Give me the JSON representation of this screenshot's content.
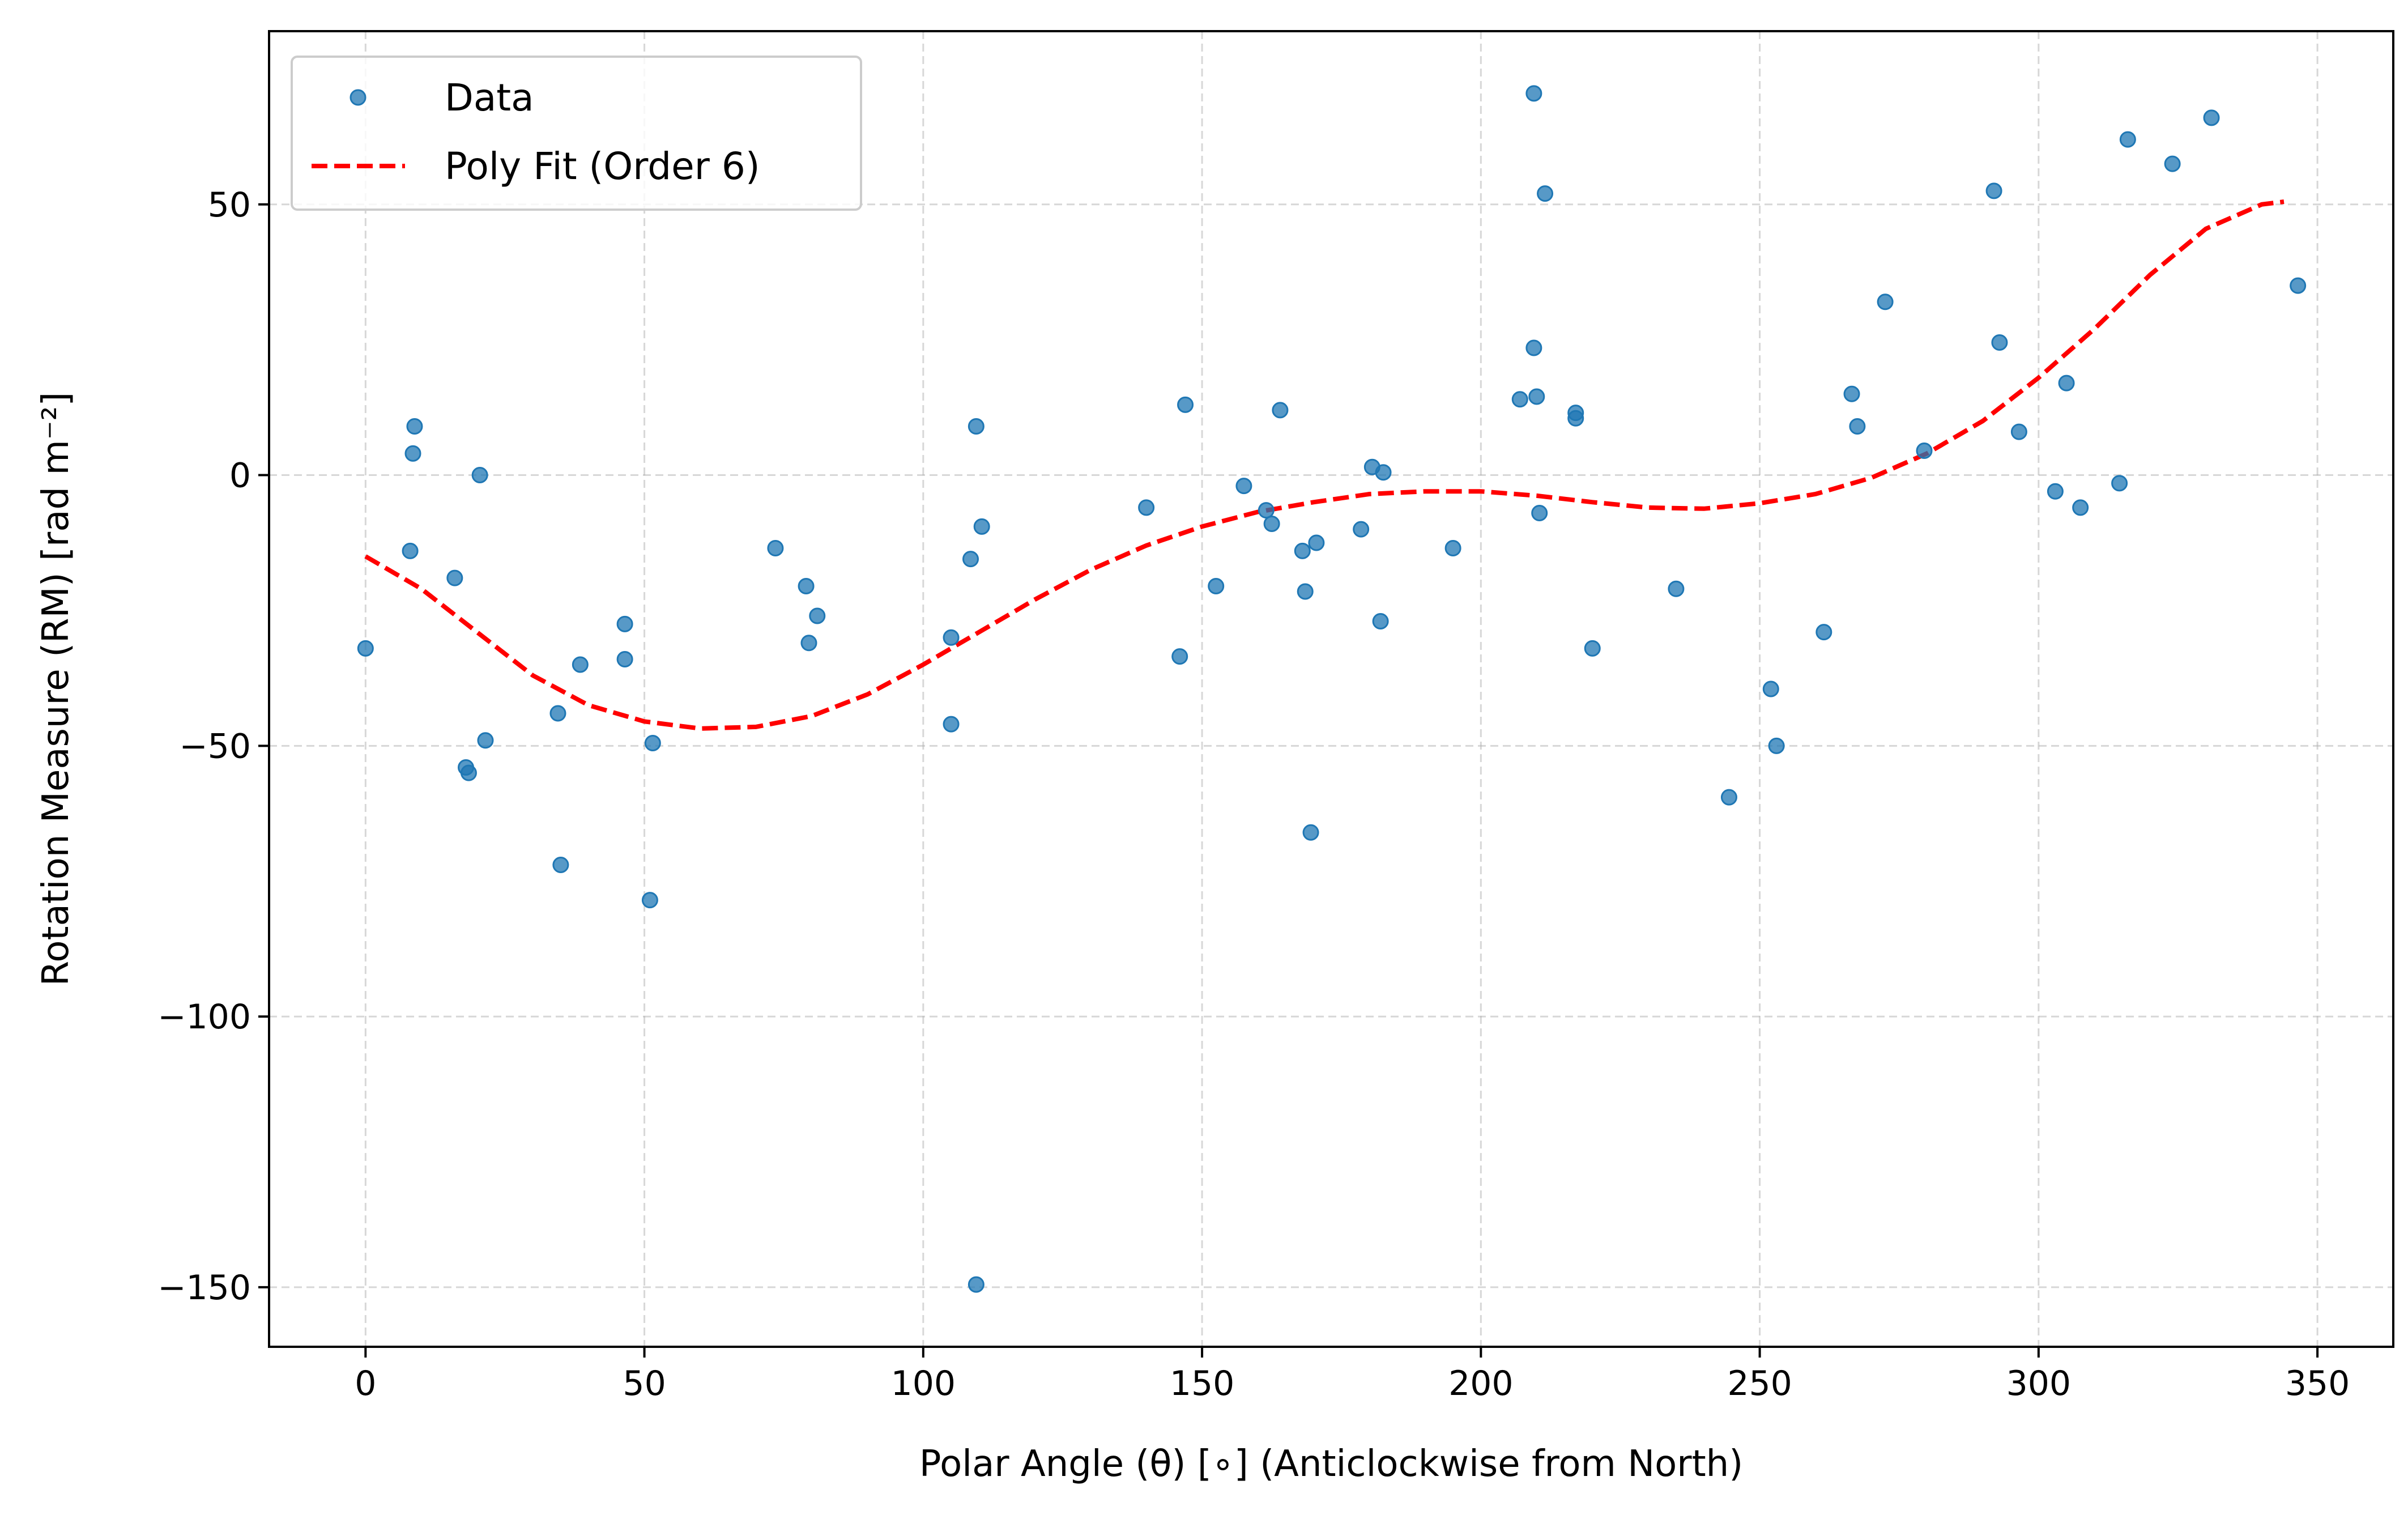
{
  "chart_data": {
    "type": "scatter",
    "title": "",
    "xlabel": "Polar Angle (θ) [∘] (Anticlockwise from North)",
    "ylabel": "Rotation Measure (RM) [rad m⁻²]",
    "xlim": [
      -17.3,
      363.6
    ],
    "ylim": [
      -161,
      82
    ],
    "x_ticks": [
      0,
      50,
      100,
      150,
      200,
      250,
      300,
      350
    ],
    "x_tick_labels": [
      "0",
      "50",
      "100",
      "150",
      "200",
      "250",
      "300",
      "350"
    ],
    "y_ticks": [
      -150,
      -100,
      -50,
      0,
      50
    ],
    "y_tick_labels": [
      "−150",
      "−100",
      "−50",
      "0",
      "50"
    ],
    "grid": true,
    "legend_position": "upper-left",
    "series": [
      {
        "name": "Data",
        "kind": "scatter",
        "color": "#1f77b4",
        "points": [
          [
            0,
            -32
          ],
          [
            8,
            -14
          ],
          [
            8.5,
            4
          ],
          [
            8.8,
            9
          ],
          [
            16,
            -19
          ],
          [
            18,
            -54
          ],
          [
            18.5,
            -55
          ],
          [
            20.5,
            0
          ],
          [
            21.5,
            -49
          ],
          [
            34.5,
            -44
          ],
          [
            35,
            -72
          ],
          [
            38.5,
            -35
          ],
          [
            46.5,
            -27.5
          ],
          [
            46.5,
            -34
          ],
          [
            51,
            -78.5
          ],
          [
            51.5,
            -49.5
          ],
          [
            73.5,
            -13.5
          ],
          [
            79,
            -20.5
          ],
          [
            79.5,
            -31
          ],
          [
            81,
            -26
          ],
          [
            105,
            -30
          ],
          [
            105,
            -46
          ],
          [
            108.5,
            -15.5
          ],
          [
            109.5,
            9
          ],
          [
            109.5,
            -149.5
          ],
          [
            110.5,
            -9.5
          ],
          [
            140,
            -6
          ],
          [
            146,
            -33.5
          ],
          [
            147,
            13
          ],
          [
            152.5,
            -20.5
          ],
          [
            157.5,
            -2
          ],
          [
            161.5,
            -6.5
          ],
          [
            162.5,
            -9
          ],
          [
            164,
            12
          ],
          [
            168,
            -14
          ],
          [
            168.5,
            -21.5
          ],
          [
            169.5,
            -66
          ],
          [
            170.5,
            -12.5
          ],
          [
            178.5,
            -10
          ],
          [
            180.5,
            1.5
          ],
          [
            182,
            -27
          ],
          [
            182.5,
            0.5
          ],
          [
            195,
            -13.5
          ],
          [
            207,
            14
          ],
          [
            209.5,
            70.5
          ],
          [
            209.5,
            23.5
          ],
          [
            210,
            14.5
          ],
          [
            210.5,
            -7
          ],
          [
            211.5,
            52
          ],
          [
            217,
            11.5
          ],
          [
            217,
            10.5
          ],
          [
            220,
            -32
          ],
          [
            235,
            -21
          ],
          [
            244.5,
            -59.5
          ],
          [
            252,
            -39.5
          ],
          [
            253,
            -50
          ],
          [
            261.5,
            -29
          ],
          [
            266.5,
            15
          ],
          [
            267.5,
            9
          ],
          [
            272.5,
            32
          ],
          [
            279.5,
            4.5
          ],
          [
            292,
            52.5
          ],
          [
            293,
            24.5
          ],
          [
            296.5,
            8
          ],
          [
            303,
            -3
          ],
          [
            305,
            17
          ],
          [
            307.5,
            -6
          ],
          [
            314.5,
            -1.5
          ],
          [
            316,
            62
          ],
          [
            324,
            57.5
          ],
          [
            331,
            66
          ],
          [
            346.5,
            35
          ]
        ]
      },
      {
        "name": "Poly Fit (Order 6)",
        "kind": "line",
        "dashed": true,
        "color": "#ff0000",
        "points": [
          [
            0,
            -15
          ],
          [
            10,
            -21
          ],
          [
            20,
            -29
          ],
          [
            30,
            -37
          ],
          [
            40,
            -42.5
          ],
          [
            50,
            -45.5
          ],
          [
            60,
            -46.8
          ],
          [
            70,
            -46.5
          ],
          [
            80,
            -44.5
          ],
          [
            90,
            -40.5
          ],
          [
            100,
            -35
          ],
          [
            110,
            -29
          ],
          [
            120,
            -23
          ],
          [
            130,
            -17.5
          ],
          [
            140,
            -13
          ],
          [
            150,
            -9.5
          ],
          [
            160,
            -6.8
          ],
          [
            170,
            -5
          ],
          [
            180,
            -3.5
          ],
          [
            190,
            -3
          ],
          [
            200,
            -3
          ],
          [
            210,
            -3.8
          ],
          [
            220,
            -5
          ],
          [
            230,
            -6
          ],
          [
            240,
            -6.2
          ],
          [
            250,
            -5.2
          ],
          [
            260,
            -3.5
          ],
          [
            270,
            -0.5
          ],
          [
            280,
            4
          ],
          [
            290,
            10
          ],
          [
            300,
            18
          ],
          [
            310,
            27
          ],
          [
            320,
            37
          ],
          [
            330,
            45.5
          ],
          [
            340,
            50
          ],
          [
            344,
            50.5
          ]
        ]
      }
    ]
  }
}
